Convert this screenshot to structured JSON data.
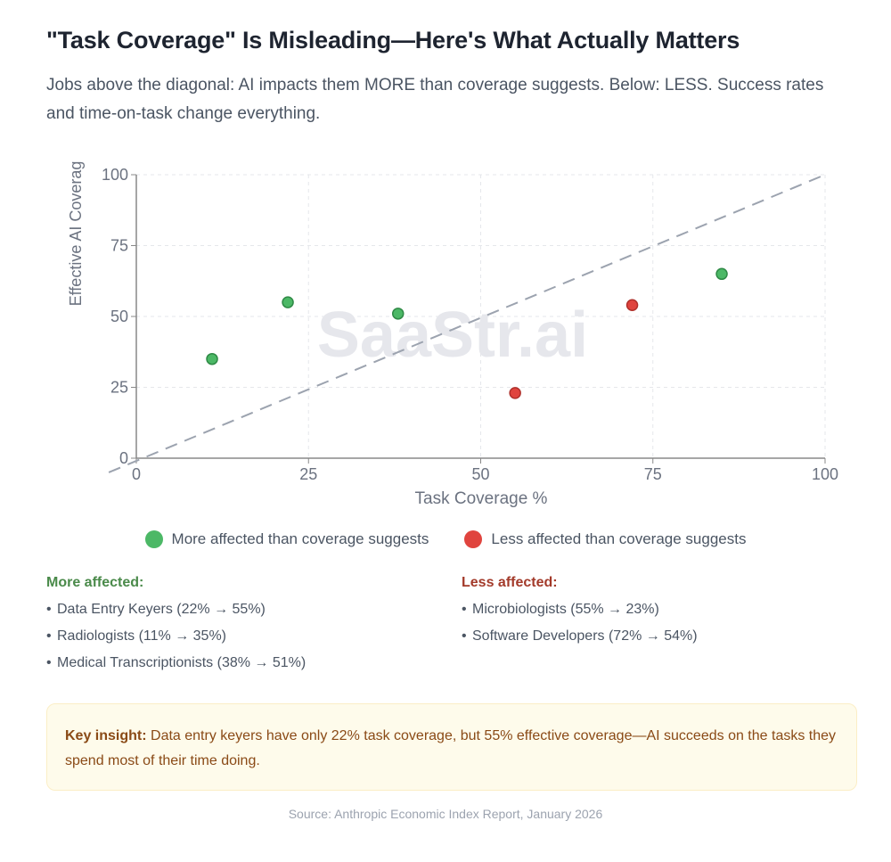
{
  "header": {
    "title": "\"Task Coverage\" Is Misleading—Here's What Actually Matters",
    "subtitle": "Jobs above the diagonal: AI impacts them MORE than coverage suggests. Below: LESS. Success rates and time-on-task change everything."
  },
  "colors": {
    "more": "#4cb866",
    "more_stroke": "#2f8a46",
    "less": "#e0443e",
    "less_stroke": "#b0302b",
    "more_heading": "#4a8a4a",
    "less_heading": "#a33a2a",
    "diagonal": "#9ca3af",
    "grid": "#e5e7eb",
    "axis": "#888888",
    "watermark": "#e6e7ec"
  },
  "chart_data": {
    "type": "scatter",
    "title": "",
    "xlabel": "Task Coverage %",
    "ylabel": "Effective AI Coverag",
    "xlim": [
      0,
      100
    ],
    "ylim": [
      0,
      100
    ],
    "xticks": [
      "0",
      "25",
      "50",
      "75",
      "100"
    ],
    "yticks": [
      "0",
      "25",
      "50",
      "75",
      "100"
    ],
    "grid": true,
    "watermark": "SaaStr.ai",
    "reference_line": {
      "label": "diagonal y = x",
      "from": [
        -4,
        -5
      ],
      "to": [
        100,
        100
      ],
      "style": "dashed"
    },
    "series": [
      {
        "name": "More affected than coverage suggests",
        "color_key": "more",
        "points": [
          {
            "label": "Radiologists",
            "x": 11,
            "y": 35
          },
          {
            "label": "Data Entry Keyers",
            "x": 22,
            "y": 55
          },
          {
            "label": "Medical Transcriptionists",
            "x": 38,
            "y": 51
          },
          {
            "label": "",
            "x": 85,
            "y": 65
          }
        ]
      },
      {
        "name": "Less affected than coverage suggests",
        "color_key": "less",
        "points": [
          {
            "label": "Microbiologists",
            "x": 55,
            "y": 23
          },
          {
            "label": "Software Developers",
            "x": 72,
            "y": 54
          }
        ]
      }
    ],
    "legend_position": "bottom"
  },
  "legend": {
    "more": "More affected than coverage suggests",
    "less": "Less affected than coverage suggests"
  },
  "lists": {
    "more": {
      "heading": "More affected:",
      "items": [
        "Data Entry Keyers (22% → 55%)",
        "Radiologists (11% → 35%)",
        "Medical Transcriptionists (38% → 51%)"
      ]
    },
    "less": {
      "heading": "Less affected:",
      "items": [
        "Microbiologists (55% → 23%)",
        "Software Developers (72% → 54%)"
      ]
    },
    "bullet": "•"
  },
  "insight": {
    "label": "Key insight:",
    "text": " Data entry keyers have only 22% task coverage, but 55% effective coverage—AI succeeds on the tasks they spend most of their time doing."
  },
  "footer": {
    "source": "Source: Anthropic Economic Index Report, January 2026"
  }
}
